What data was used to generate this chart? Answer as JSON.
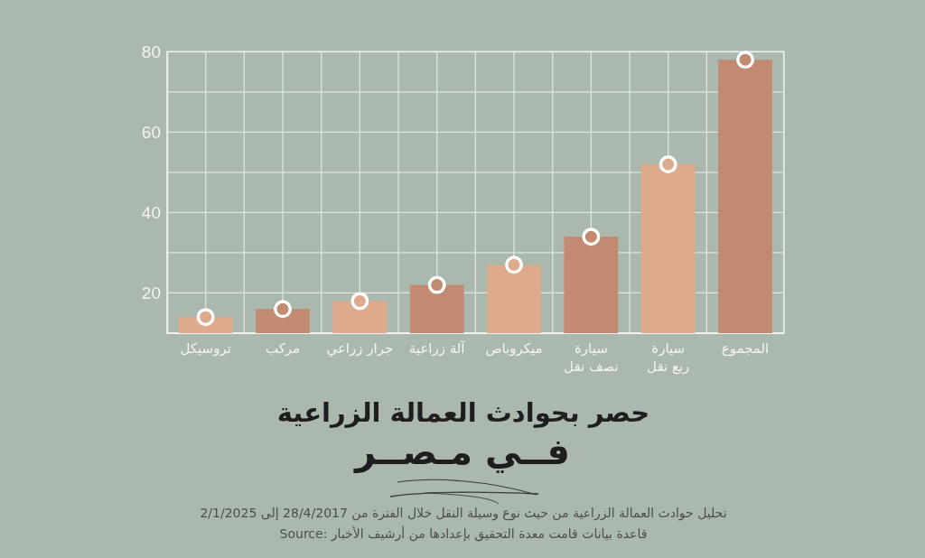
{
  "chart_data": {
    "type": "bar",
    "title": "حصر بحوادث العمالة الزراعية",
    "subtitle": "فــي مـصــر",
    "categories": [
      "تروسيكل",
      "مركب",
      "جرار زراعي",
      "آلة زراعية",
      "ميكروباص",
      "سيارة نصف نقل",
      "سيارة ربع نقل",
      "المجموع"
    ],
    "series": [
      {
        "values": [
          14,
          16,
          18,
          22,
          27,
          34,
          52,
          78
        ],
        "colors": [
          "#ddaa8b",
          "#c18a71",
          "#ddaa8b",
          "#c18a71",
          "#ddaa8b",
          "#c18a71",
          "#ddaa8b",
          "#c18a71"
        ]
      },
      {
        "type": "scatter",
        "x": [
          "تروسيكل",
          "مركب",
          "جرار زراعي",
          "آلة زراعية",
          "ميكروباص",
          "سيارة نصف نقل",
          "سيارة ربع نقل",
          "المجموع"
        ],
        "values": [
          14,
          16,
          18,
          22,
          27,
          34,
          52,
          78
        ],
        "colors": [
          "#ddaa8b",
          "#c18a71",
          "#ddaa8b",
          "#c18a71",
          "#ddaa8b",
          "#c18a71",
          "#ddaa8b",
          "#c18a71"
        ]
      }
    ],
    "ylim": [
      10,
      80
    ],
    "yticks": [
      20,
      40,
      60,
      80
    ],
    "grid": true,
    "marker": "circle",
    "annotations": [
      "تحليل حوادث العمالة الزراعية من حيث نوع وسيلة النقل خلال الفترة من 28/4/2017 إلى 2/1/2025",
      "Source: قاعدة بيانات قامت معدة التحقيق بإعدادها من أرشيف الأخبار"
    ]
  }
}
